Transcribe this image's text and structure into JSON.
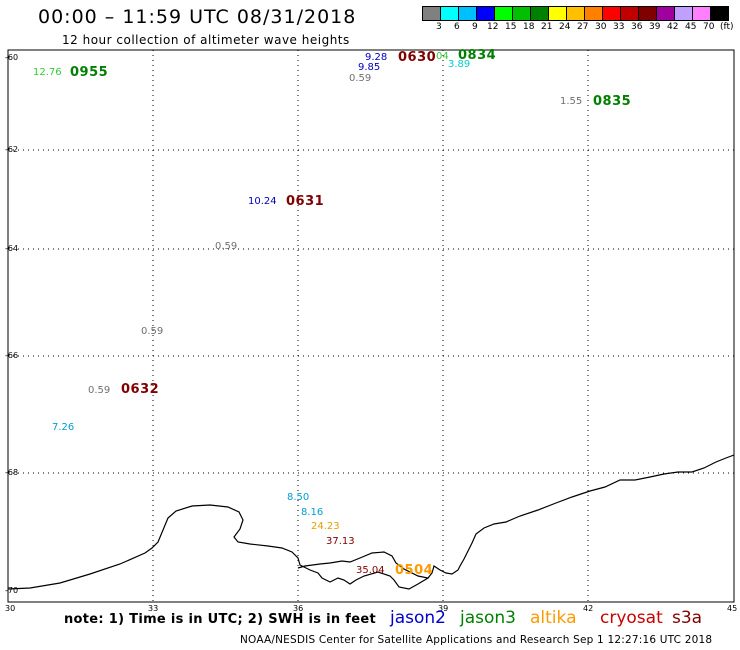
{
  "header": {
    "title": "00:00 – 11:59 UTC 08/31/2018",
    "subtitle": "12 hour collection of altimeter wave heights"
  },
  "legend": {
    "unit": "(ft)",
    "colors": [
      "#808080",
      "#00ffff",
      "#00bfff",
      "#0000ff",
      "#00ff00",
      "#00c000",
      "#008000",
      "#ffff00",
      "#ffc000",
      "#ff8000",
      "#ff0000",
      "#c00000",
      "#800000",
      "#a000a0",
      "#c0a0ff",
      "#ff80ff",
      "#000000"
    ],
    "labels": [
      "3",
      "6",
      "9",
      "12",
      "15",
      "18",
      "21",
      "24",
      "27",
      "30",
      "33",
      "36",
      "39",
      "42",
      "45",
      "70"
    ]
  },
  "axes": {
    "lat_labels": [
      "-60",
      "-62",
      "-64",
      "-66",
      "-68",
      "-70"
    ],
    "lon_labels": [
      "30",
      "33",
      "36",
      "39",
      "42",
      "45"
    ]
  },
  "observations": [
    {
      "text": "12.76",
      "color": "#32cd32"
    },
    {
      "text": "9.28",
      "color": "#0000c0"
    },
    {
      "text": "9.85",
      "color": "#0000c0"
    },
    {
      "text": "0.59",
      "color": "#707070"
    },
    {
      "text": "04",
      "color": "#32cd32"
    },
    {
      "text": "3.89",
      "color": "#00cccc"
    },
    {
      "text": "1.55",
      "color": "#707070"
    },
    {
      "text": "10.24",
      "color": "#0000c0"
    },
    {
      "text": "0.59",
      "color": "#707070"
    },
    {
      "text": "0.59",
      "color": "#707070"
    },
    {
      "text": "0.59",
      "color": "#707070"
    },
    {
      "text": "7.26",
      "color": "#00a0d0"
    },
    {
      "text": "8.50",
      "color": "#00a0d0"
    },
    {
      "text": "8.16",
      "color": "#00a0d0"
    },
    {
      "text": "24.23",
      "color": "#e0a000"
    },
    {
      "text": "37.13",
      "color": "#800000"
    },
    {
      "text": "35.04",
      "color": "#800000"
    }
  ],
  "pass_times": [
    {
      "text": "0955",
      "color": "#008000"
    },
    {
      "text": "0630",
      "color": "#800000"
    },
    {
      "text": "0834",
      "color": "#008000"
    },
    {
      "text": "0835",
      "color": "#008000"
    },
    {
      "text": "0631",
      "color": "#800000"
    },
    {
      "text": "0632",
      "color": "#800000"
    },
    {
      "text": "0504",
      "color": "#ff9900"
    }
  ],
  "note": "note: 1) Time is in UTC; 2) SWH is in feet",
  "missions": [
    {
      "name": "jason2",
      "color": "#0000cc"
    },
    {
      "name": "jason3",
      "color": "#008000"
    },
    {
      "name": "altika",
      "color": "#ff9900"
    },
    {
      "name": "cryosat",
      "color": "#cc0000"
    },
    {
      "name": "s3a",
      "color": "#800000"
    }
  ],
  "footer": "NOAA/NESDIS Center for Satellite Applications and Research    Sep  1 12:27:16 UTC 2018"
}
